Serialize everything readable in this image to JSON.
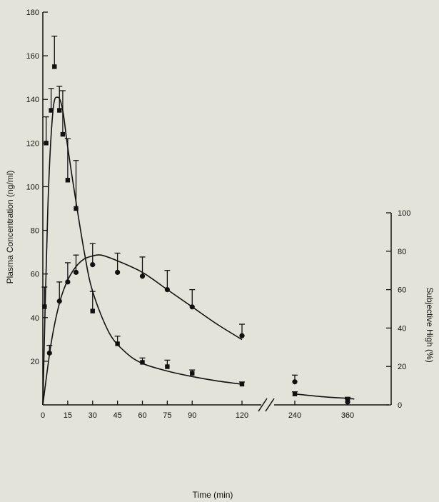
{
  "chart_data": {
    "type": "scatter",
    "xlabel": "Time (min)",
    "ylabel_left": "Plasma Concentration (ng/ml)",
    "ylabel_right": "Subjective High (%)",
    "x_ticks_left": [
      0,
      15,
      30,
      45,
      60,
      75,
      90,
      120
    ],
    "x_ticks_right": [
      240,
      360
    ],
    "x_break": "between 120 and 240",
    "y_left_ticks": [
      20,
      40,
      60,
      80,
      100,
      120,
      140,
      160,
      180
    ],
    "y_left_lim": [
      0,
      180
    ],
    "y_right_ticks": [
      0,
      20,
      40,
      60,
      80,
      100
    ],
    "y_right_lim": [
      0,
      100
    ],
    "series": [
      {
        "marker": "square",
        "axis": "left",
        "points": [
          {
            "x": 1,
            "y": 45,
            "err": 9
          },
          {
            "x": 2,
            "y": 120,
            "err": 12
          },
          {
            "x": 5,
            "y": 135,
            "err": 10
          },
          {
            "x": 7,
            "y": 155,
            "err": 14
          },
          {
            "x": 10,
            "y": 135,
            "err": 11
          },
          {
            "x": 12,
            "y": 124,
            "err": 20
          },
          {
            "x": 15,
            "y": 103,
            "err": 19
          },
          {
            "x": 20,
            "y": 90,
            "err": 22
          },
          {
            "x": 30,
            "y": 43,
            "err": 9
          },
          {
            "x": 45,
            "y": 28,
            "err": 3.5
          },
          {
            "x": 60,
            "y": 19.5,
            "err": 2
          },
          {
            "x": 75,
            "y": 17.5,
            "err": 3
          },
          {
            "x": 90,
            "y": 14.5,
            "err": 1.5
          },
          {
            "x": 120,
            "y": 9.5,
            "err": 1
          },
          {
            "x": 240,
            "y": 5,
            "err": 1
          },
          {
            "x": 360,
            "y": 2.5,
            "err": 1
          }
        ],
        "curve": [
          [
            0,
            0
          ],
          [
            3,
            90
          ],
          [
            6,
            134
          ],
          [
            9,
            141
          ],
          [
            12,
            135
          ],
          [
            15,
            118
          ],
          [
            20,
            93
          ],
          [
            25,
            70
          ],
          [
            30,
            52
          ],
          [
            40,
            33
          ],
          [
            50,
            24
          ],
          [
            60,
            19
          ],
          [
            75,
            15.5
          ],
          [
            90,
            13
          ],
          [
            105,
            11
          ],
          [
            120,
            9.5
          ],
          [
            240,
            5
          ],
          [
            300,
            3.8
          ],
          [
            360,
            3
          ],
          [
            375,
            2.7
          ]
        ]
      },
      {
        "marker": "circle",
        "axis": "right",
        "points": [
          {
            "x": 4,
            "y": 27,
            "err": 4
          },
          {
            "x": 10,
            "y": 54,
            "err": 10
          },
          {
            "x": 15,
            "y": 64,
            "err": 10
          },
          {
            "x": 20,
            "y": 69,
            "err": 9
          },
          {
            "x": 30,
            "y": 73,
            "err": 11
          },
          {
            "x": 45,
            "y": 69,
            "err": 10
          },
          {
            "x": 60,
            "y": 67,
            "err": 10
          },
          {
            "x": 75,
            "y": 60,
            "err": 10
          },
          {
            "x": 90,
            "y": 51,
            "err": 9
          },
          {
            "x": 120,
            "y": 36,
            "err": 6
          },
          {
            "x": 240,
            "y": 12,
            "err": 3.5
          },
          {
            "x": 360,
            "y": 1.5,
            "err": 1.5
          }
        ],
        "curve": [
          [
            0,
            0
          ],
          [
            5,
            32
          ],
          [
            10,
            53
          ],
          [
            15,
            65
          ],
          [
            20,
            72
          ],
          [
            25,
            76
          ],
          [
            30,
            77.5
          ],
          [
            35,
            78
          ],
          [
            45,
            75
          ],
          [
            60,
            69
          ],
          [
            75,
            60
          ],
          [
            90,
            51
          ],
          [
            105,
            42
          ],
          [
            120,
            34
          ]
        ]
      }
    ]
  }
}
